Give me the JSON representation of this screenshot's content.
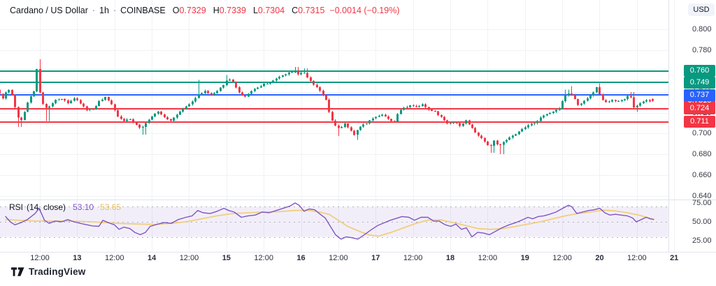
{
  "header": {
    "symbol": "Cardano / US Dollar",
    "sep": "·",
    "interval": "1h",
    "exchange": "COINBASE",
    "ohlc": [
      {
        "k": "O",
        "v": "0.7329"
      },
      {
        "k": "H",
        "v": "0.7339"
      },
      {
        "k": "L",
        "v": "0.7304"
      },
      {
        "k": "C",
        "v": "0.7315"
      }
    ],
    "change": "−0.0014 (−0.19%)"
  },
  "price_axis": {
    "currency": "USD",
    "ticks": [
      "0.800",
      "0.780",
      "0.760",
      "0.740",
      "0.720",
      "0.700",
      "0.680",
      "0.660",
      "0.640"
    ]
  },
  "levels": [
    {
      "label": "0.760",
      "price": 0.76,
      "color": "#089981"
    },
    {
      "label": "0.749",
      "price": 0.749,
      "color": "#089981"
    },
    {
      "label": "0.737",
      "price": 0.737,
      "color": "#2962FF"
    },
    {
      "label": "0.724",
      "price": 0.724,
      "color": "#F23645"
    },
    {
      "label": "0.711",
      "price": 0.711,
      "color": "#F23645"
    }
  ],
  "last_price": {
    "label": "0.7315",
    "price": 0.7315,
    "color": "#F23645"
  },
  "time_axis": [
    {
      "label": "12:00",
      "major": false
    },
    {
      "label": "13",
      "major": true
    },
    {
      "label": "12:00",
      "major": false
    },
    {
      "label": "14",
      "major": true
    },
    {
      "label": "12:00",
      "major": false
    },
    {
      "label": "15",
      "major": true
    },
    {
      "label": "12:00",
      "major": false
    },
    {
      "label": "16",
      "major": true
    },
    {
      "label": "12:00",
      "major": false
    },
    {
      "label": "17",
      "major": true
    },
    {
      "label": "12:00",
      "major": false
    },
    {
      "label": "18",
      "major": true
    },
    {
      "label": "12:00",
      "major": false
    },
    {
      "label": "19",
      "major": true
    },
    {
      "label": "12:00",
      "major": false
    },
    {
      "label": "20",
      "major": true
    },
    {
      "label": "12:00",
      "major": false
    },
    {
      "label": "21",
      "major": true
    }
  ],
  "rsi": {
    "title": "RSI",
    "params": "(14, close)",
    "value": "53.10",
    "ma_value": "53.65",
    "ticks": [
      "75.00",
      "50.00",
      "25.00"
    ],
    "tick_values": [
      75,
      50,
      25
    ],
    "band": [
      30,
      70
    ],
    "mid": 50
  },
  "branding": {
    "logo_text": "TradingView"
  },
  "colors": {
    "up": "#089981",
    "down": "#F23645",
    "blue_level": "#2962FF",
    "grid": "#F0F2F5",
    "axis_text": "#363A45",
    "rsi_line": "#7E57C2",
    "rsi_ma_line": "#F0CE7E",
    "band_fill": "rgba(126,87,194,0.10)",
    "dash": "rgba(120,123,134,0.55)",
    "separator": "#E0E3EB",
    "header_text": "#131722",
    "red_text": "#F23645"
  },
  "chart_data": {
    "type": "candlestick",
    "title": "Cardano / US Dollar · 1h · COINBASE",
    "ohlc_last": {
      "open": 0.7329,
      "high": 0.7339,
      "low": 0.7304,
      "close": 0.7315,
      "change": -0.0014,
      "change_pct": -0.19
    },
    "x_unit": "hours from first visible candle (1h bars, days 12-21 shown on axis)",
    "visible_price_range": [
      0.64,
      0.8
    ],
    "levels": [
      0.76,
      0.749,
      0.737,
      0.724,
      0.711
    ],
    "price_path_anchors": [
      [
        -2,
        0.742
      ],
      [
        0,
        0.733
      ],
      [
        1,
        0.7405
      ],
      [
        2,
        0.742
      ],
      [
        3,
        0.736
      ],
      [
        4,
        0.724
      ],
      [
        5,
        0.715
      ],
      [
        6,
        0.7135
      ],
      [
        7,
        0.722
      ],
      [
        8,
        0.73
      ],
      [
        9,
        0.737
      ],
      [
        10,
        0.7405
      ],
      [
        10.8,
        0.7655
      ],
      [
        11.5,
        0.744
      ],
      [
        12.5,
        0.732
      ],
      [
        13.5,
        0.7235
      ],
      [
        15,
        0.7265
      ],
      [
        17,
        0.732
      ],
      [
        19,
        0.7335
      ],
      [
        21,
        0.7295
      ],
      [
        23,
        0.734
      ],
      [
        25,
        0.7285
      ],
      [
        27,
        0.7225
      ],
      [
        29,
        0.7235
      ],
      [
        31,
        0.731
      ],
      [
        33,
        0.7345
      ],
      [
        35,
        0.728
      ],
      [
        37,
        0.716
      ],
      [
        39,
        0.7125
      ],
      [
        41,
        0.7135
      ],
      [
        43,
        0.7085
      ],
      [
        44.5,
        0.7045
      ],
      [
        46,
        0.711
      ],
      [
        48,
        0.7165
      ],
      [
        50,
        0.721
      ],
      [
        52,
        0.7155
      ],
      [
        54,
        0.7125
      ],
      [
        56,
        0.7185
      ],
      [
        58,
        0.7235
      ],
      [
        60,
        0.728
      ],
      [
        62,
        0.7345
      ],
      [
        63.5,
        0.7385
      ],
      [
        65,
        0.7405
      ],
      [
        67,
        0.7365
      ],
      [
        69,
        0.7405
      ],
      [
        71,
        0.7475
      ],
      [
        72.5,
        0.7525
      ],
      [
        74,
        0.7495
      ],
      [
        76,
        0.7385
      ],
      [
        78,
        0.7355
      ],
      [
        80,
        0.7415
      ],
      [
        82,
        0.7445
      ],
      [
        84,
        0.7475
      ],
      [
        86,
        0.7495
      ],
      [
        88,
        0.7525
      ],
      [
        90,
        0.7565
      ],
      [
        92,
        0.7585
      ],
      [
        93.5,
        0.7605
      ],
      [
        95,
        0.757
      ],
      [
        96.5,
        0.7595
      ],
      [
        98,
        0.753
      ],
      [
        100,
        0.7465
      ],
      [
        102,
        0.7405
      ],
      [
        104,
        0.7315
      ],
      [
        105.5,
        0.7135
      ],
      [
        107,
        0.7075
      ],
      [
        108.5,
        0.7045
      ],
      [
        110,
        0.7095
      ],
      [
        111.5,
        0.7035
      ],
      [
        113,
        0.6985
      ],
      [
        114.5,
        0.7065
      ],
      [
        116,
        0.7085
      ],
      [
        118,
        0.7125
      ],
      [
        120,
        0.7165
      ],
      [
        122,
        0.7185
      ],
      [
        124,
        0.7135
      ],
      [
        126,
        0.7115
      ],
      [
        127.5,
        0.7225
      ],
      [
        129,
        0.7245
      ],
      [
        131,
        0.7275
      ],
      [
        133,
        0.7255
      ],
      [
        135,
        0.7285
      ],
      [
        137,
        0.7225
      ],
      [
        139,
        0.7205
      ],
      [
        141,
        0.7155
      ],
      [
        143,
        0.7095
      ],
      [
        145,
        0.7115
      ],
      [
        147,
        0.7075
      ],
      [
        149,
        0.7125
      ],
      [
        151,
        0.7045
      ],
      [
        153,
        0.6975
      ],
      [
        155,
        0.6925
      ],
      [
        156.5,
        0.6865
      ],
      [
        158,
        0.6935
      ],
      [
        159.5,
        0.6875
      ],
      [
        161,
        0.6915
      ],
      [
        163,
        0.6965
      ],
      [
        165,
        0.699
      ],
      [
        167,
        0.7045
      ],
      [
        169,
        0.7075
      ],
      [
        171,
        0.7105
      ],
      [
        173,
        0.7155
      ],
      [
        175,
        0.7185
      ],
      [
        177,
        0.7215
      ],
      [
        179,
        0.7245
      ],
      [
        180.5,
        0.7365
      ],
      [
        182,
        0.7385
      ],
      [
        183.5,
        0.7355
      ],
      [
        185,
        0.7265
      ],
      [
        186.5,
        0.7295
      ],
      [
        188,
        0.7345
      ],
      [
        189.5,
        0.7375
      ],
      [
        191,
        0.7445
      ],
      [
        192.5,
        0.734
      ],
      [
        194,
        0.7295
      ],
      [
        196,
        0.7325
      ],
      [
        198,
        0.7305
      ],
      [
        200,
        0.7335
      ],
      [
        201.5,
        0.7375
      ],
      [
        203,
        0.7245
      ],
      [
        204.5,
        0.7275
      ],
      [
        206,
        0.7315
      ],
      [
        208,
        0.7315
      ]
    ],
    "wick_highs": [
      [
        10.8,
        0.7712
      ],
      [
        62,
        0.7515
      ],
      [
        71,
        0.756
      ],
      [
        93.5,
        0.764
      ],
      [
        96.5,
        0.7625
      ],
      [
        180.5,
        0.742
      ],
      [
        182,
        0.7455
      ],
      [
        191,
        0.748
      ],
      [
        201.5,
        0.7398
      ]
    ],
    "wick_lows": [
      [
        4.5,
        0.7062
      ],
      [
        13.5,
        0.712
      ],
      [
        44.5,
        0.699
      ],
      [
        107,
        0.6975
      ],
      [
        113,
        0.694
      ],
      [
        156.5,
        0.6815
      ],
      [
        159.5,
        0.6802
      ],
      [
        203,
        0.7207
      ]
    ],
    "rsi_points": [
      [
        0,
        57
      ],
      [
        1.5,
        50
      ],
      [
        3,
        46
      ],
      [
        5,
        49
      ],
      [
        7,
        53
      ],
      [
        9.5,
        61
      ],
      [
        10.8,
        68
      ],
      [
        12.5,
        52
      ],
      [
        14,
        48
      ],
      [
        16,
        51
      ],
      [
        18,
        50
      ],
      [
        20,
        53
      ],
      [
        22,
        50
      ],
      [
        25,
        47
      ],
      [
        28,
        44.5
      ],
      [
        30,
        44
      ],
      [
        31.3,
        52
      ],
      [
        33,
        49
      ],
      [
        35,
        46
      ],
      [
        36.5,
        40
      ],
      [
        38,
        43
      ],
      [
        40,
        41
      ],
      [
        41.5,
        36
      ],
      [
        43.3,
        33
      ],
      [
        45,
        36
      ],
      [
        46.5,
        44
      ],
      [
        49,
        47
      ],
      [
        51,
        49
      ],
      [
        53.3,
        48
      ],
      [
        55.5,
        53
      ],
      [
        58,
        56
      ],
      [
        60,
        58
      ],
      [
        61.8,
        65
      ],
      [
        63.5,
        62
      ],
      [
        65.8,
        61
      ],
      [
        68,
        64
      ],
      [
        70.2,
        68
      ],
      [
        71.8,
        65
      ],
      [
        73.5,
        63
      ],
      [
        75.8,
        56
      ],
      [
        78,
        58
      ],
      [
        80.3,
        59
      ],
      [
        82.5,
        63
      ],
      [
        84.8,
        62
      ],
      [
        87,
        65
      ],
      [
        89.3,
        68
      ],
      [
        91.5,
        71
      ],
      [
        93.1,
        75
      ],
      [
        94.4,
        72
      ],
      [
        96,
        64
      ],
      [
        97.6,
        67
      ],
      [
        99.4,
        66
      ],
      [
        101.2,
        60
      ],
      [
        102.8,
        55
      ],
      [
        104.3,
        45
      ],
      [
        106.1,
        33
      ],
      [
        107.9,
        27
      ],
      [
        109.5,
        30
      ],
      [
        111.3,
        29
      ],
      [
        113.3,
        27
      ],
      [
        115.1,
        32
      ],
      [
        117.4,
        39
      ],
      [
        119.6,
        45
      ],
      [
        121.9,
        49
      ],
      [
        123.7,
        52
      ],
      [
        125.2,
        54
      ],
      [
        127.5,
        57
      ],
      [
        129.7,
        56
      ],
      [
        131.5,
        52
      ],
      [
        133.6,
        56
      ],
      [
        135.8,
        56
      ],
      [
        137.6,
        51
      ],
      [
        139.4,
        51
      ],
      [
        141.4,
        46
      ],
      [
        143.2,
        44
      ],
      [
        144.8,
        47
      ],
      [
        146.6,
        40
      ],
      [
        148.2,
        42
      ],
      [
        150,
        30
      ],
      [
        151.8,
        36
      ],
      [
        153.8,
        35
      ],
      [
        155.6,
        33
      ],
      [
        157.4,
        37
      ],
      [
        159.6,
        42
      ],
      [
        161.9,
        46
      ],
      [
        164.1,
        49
      ],
      [
        166.4,
        53
      ],
      [
        168,
        56
      ],
      [
        169.5,
        54
      ],
      [
        171.3,
        57
      ],
      [
        173.1,
        58
      ],
      [
        174.9,
        60
      ],
      [
        177,
        63
      ],
      [
        179.2,
        68
      ],
      [
        181,
        72
      ],
      [
        182.1,
        70
      ],
      [
        183.7,
        61
      ],
      [
        185.5,
        63
      ],
      [
        187.5,
        65
      ],
      [
        189.3,
        66
      ],
      [
        191.1,
        68
      ],
      [
        192.7,
        62
      ],
      [
        194.3,
        59
      ],
      [
        196.1,
        60
      ],
      [
        197.9,
        59
      ],
      [
        199.9,
        58
      ],
      [
        201.7,
        55
      ],
      [
        202.8,
        50
      ],
      [
        204.4,
        53
      ],
      [
        206,
        56
      ],
      [
        207.3,
        54
      ],
      [
        208.4,
        53.1
      ]
    ],
    "rsi_ma_points": [
      [
        0,
        53
      ],
      [
        10,
        51
      ],
      [
        20,
        51
      ],
      [
        28,
        50
      ],
      [
        36,
        48
      ],
      [
        43,
        47
      ],
      [
        48,
        46.5
      ],
      [
        53,
        48
      ],
      [
        58,
        50
      ],
      [
        63,
        54
      ],
      [
        68,
        58
      ],
      [
        73,
        61
      ],
      [
        78,
        62
      ],
      [
        83,
        63
      ],
      [
        88,
        63.5
      ],
      [
        93,
        65
      ],
      [
        97,
        65.5
      ],
      [
        101,
        63
      ],
      [
        104,
        60
      ],
      [
        107,
        52
      ],
      [
        110,
        44
      ],
      [
        114,
        37
      ],
      [
        117,
        32.5
      ],
      [
        120,
        31
      ],
      [
        124,
        36
      ],
      [
        128,
        42
      ],
      [
        132,
        48
      ],
      [
        136,
        52.5
      ],
      [
        140,
        52.5
      ],
      [
        144,
        49
      ],
      [
        148,
        45
      ],
      [
        152,
        41
      ],
      [
        156,
        40
      ],
      [
        160,
        41
      ],
      [
        164,
        44
      ],
      [
        168,
        47
      ],
      [
        172,
        50
      ],
      [
        176,
        54
      ],
      [
        180,
        58
      ],
      [
        184,
        61
      ],
      [
        188,
        63
      ],
      [
        192,
        65.5
      ],
      [
        196,
        64.5
      ],
      [
        200,
        62
      ],
      [
        204,
        58.5
      ],
      [
        207,
        55
      ],
      [
        208.4,
        53.65
      ]
    ]
  }
}
